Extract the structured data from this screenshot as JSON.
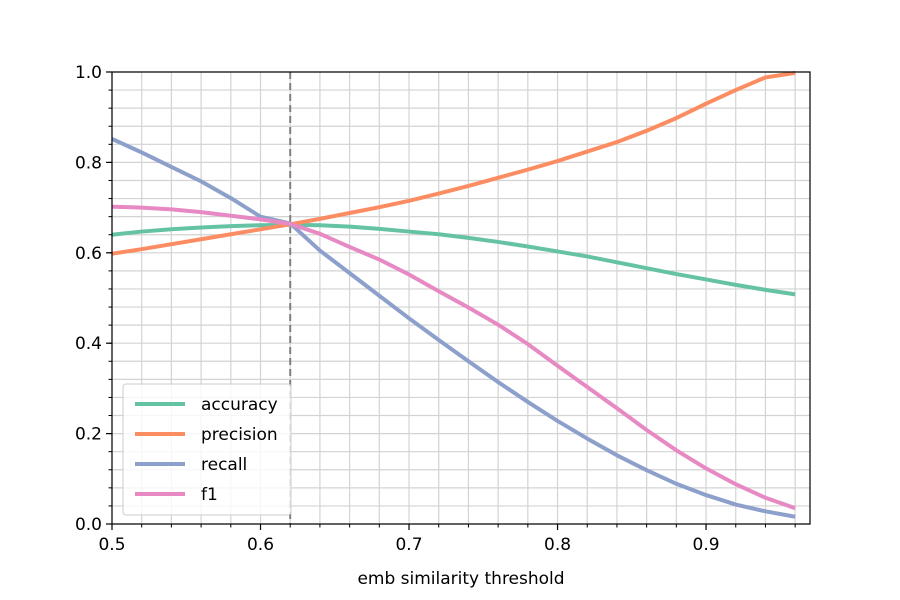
{
  "chart_data": {
    "type": "line",
    "xlabel": "emb similarity threshold",
    "ylabel": "",
    "xlim": [
      0.5,
      0.97
    ],
    "ylim": [
      0.0,
      1.0
    ],
    "x_ticks": [
      0.5,
      0.6,
      0.7,
      0.8,
      0.9
    ],
    "x_tick_labels": [
      "0.5",
      "0.6",
      "0.7",
      "0.8",
      "0.9"
    ],
    "y_ticks": [
      0.0,
      0.2,
      0.4,
      0.6,
      0.8,
      1.0
    ],
    "y_tick_labels": [
      "0.0",
      "0.2",
      "0.4",
      "0.6",
      "0.8",
      "1.0"
    ],
    "grid": true,
    "minor_grid": true,
    "legend_position": "lower-left",
    "vline": {
      "x": 0.62,
      "color": "#7f7f7f",
      "style": "dashed"
    },
    "x": [
      0.5,
      0.52,
      0.54,
      0.56,
      0.58,
      0.6,
      0.62,
      0.64,
      0.66,
      0.68,
      0.7,
      0.72,
      0.74,
      0.76,
      0.78,
      0.8,
      0.82,
      0.84,
      0.86,
      0.88,
      0.9,
      0.92,
      0.94,
      0.96
    ],
    "series": [
      {
        "name": "accuracy",
        "color": "#66c2a5",
        "values": [
          0.64,
          0.647,
          0.652,
          0.656,
          0.659,
          0.661,
          0.662,
          0.661,
          0.658,
          0.653,
          0.647,
          0.641,
          0.633,
          0.624,
          0.614,
          0.603,
          0.592,
          0.579,
          0.566,
          0.553,
          0.541,
          0.529,
          0.518,
          0.508
        ]
      },
      {
        "name": "precision",
        "color": "#fc8d62",
        "values": [
          0.598,
          0.608,
          0.619,
          0.63,
          0.641,
          0.652,
          0.663,
          0.675,
          0.688,
          0.701,
          0.715,
          0.731,
          0.748,
          0.766,
          0.784,
          0.803,
          0.824,
          0.845,
          0.87,
          0.898,
          0.93,
          0.96,
          0.988,
          0.998
        ]
      },
      {
        "name": "recall",
        "color": "#8da0cb",
        "values": [
          0.852,
          0.822,
          0.79,
          0.758,
          0.721,
          0.68,
          0.665,
          0.605,
          0.555,
          0.505,
          0.455,
          0.407,
          0.36,
          0.314,
          0.27,
          0.228,
          0.189,
          0.152,
          0.119,
          0.089,
          0.064,
          0.043,
          0.028,
          0.016
        ]
      },
      {
        "name": "f1",
        "color": "#e78ac3",
        "values": [
          0.702,
          0.7,
          0.696,
          0.69,
          0.682,
          0.674,
          0.664,
          0.642,
          0.613,
          0.585,
          0.552,
          0.515,
          0.479,
          0.441,
          0.398,
          0.35,
          0.303,
          0.256,
          0.208,
          0.163,
          0.123,
          0.088,
          0.058,
          0.035
        ]
      }
    ]
  }
}
